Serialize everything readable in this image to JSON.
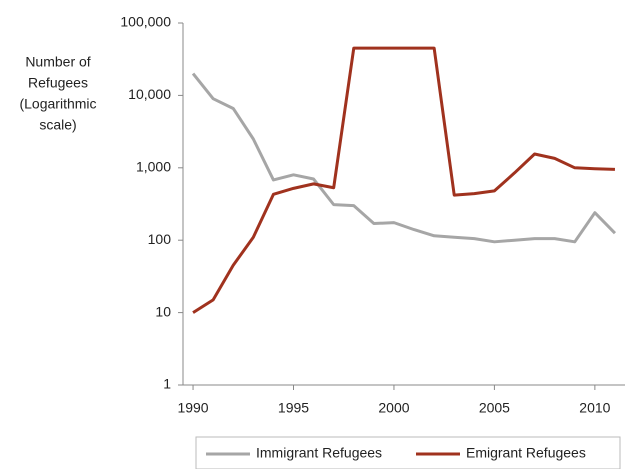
{
  "chart_data": {
    "type": "line",
    "ylabel": [
      "Number of",
      "Refugees",
      "(Logarithmic",
      "scale)"
    ],
    "x": [
      1990,
      1991,
      1992,
      1993,
      1994,
      1995,
      1996,
      1997,
      1998,
      1999,
      2000,
      2001,
      2002,
      2003,
      2004,
      2005,
      2006,
      2007,
      2008,
      2009,
      2010,
      2011
    ],
    "series": [
      {
        "name": "Immigrant Refugees",
        "color": "#a6a6a6",
        "values": [
          20000,
          9000,
          6600,
          2500,
          680,
          800,
          700,
          310,
          300,
          170,
          175,
          140,
          115,
          110,
          105,
          95,
          100,
          105,
          105,
          95,
          240,
          125
        ]
      },
      {
        "name": "Emigrant Refugees",
        "color": "#a0321e",
        "values": [
          10,
          15,
          45,
          110,
          430,
          520,
          600,
          530,
          45000,
          45000,
          45000,
          45000,
          45000,
          420,
          440,
          480,
          850,
          1550,
          1350,
          1000,
          970,
          950
        ]
      }
    ],
    "yscale": "log",
    "ylim": [
      1,
      100000
    ],
    "yticks": [
      1,
      10,
      100,
      {
        "value": 1000,
        "label": "1,000"
      },
      {
        "value": 10000,
        "label": "10,000"
      },
      {
        "value": 100000,
        "label": "100,000"
      }
    ],
    "xlim": [
      1989.5,
      2011.5
    ],
    "xticks": [
      1990,
      1995,
      2000,
      2005,
      2010
    ],
    "legend": "bottom"
  }
}
